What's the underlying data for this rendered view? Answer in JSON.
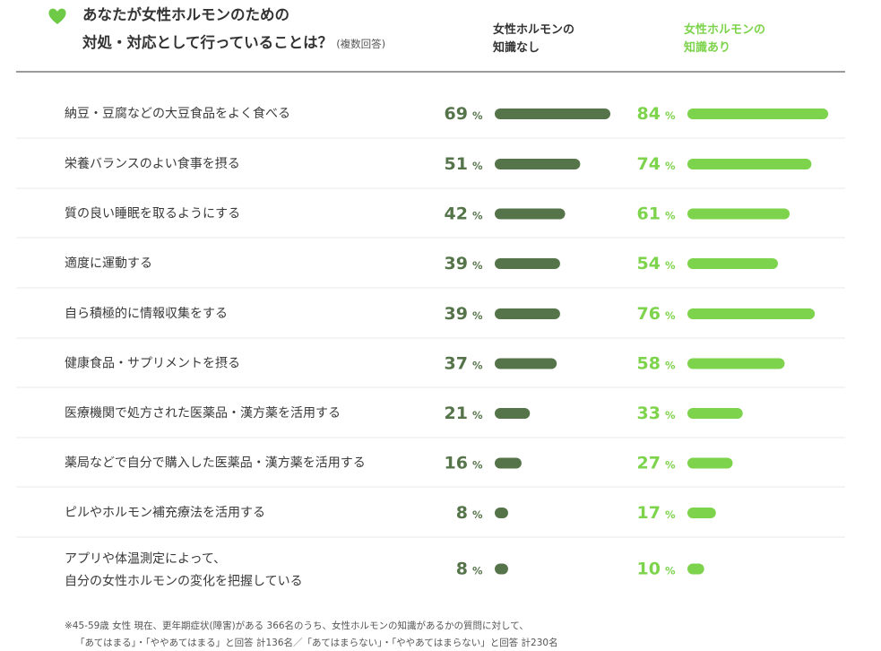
{
  "title": {
    "line1": "あなたが女性ホルモンのための",
    "line2": "対処・対応として行っていることは？",
    "note": "(複数回答)"
  },
  "colors": {
    "heart": "#6dc946",
    "series_no_knowledge": "#56744a",
    "series_knowledge": "#7dd34b",
    "divider": "#e8e8e8",
    "header_rule": "#7a7a7a"
  },
  "icons": {
    "title_icon": "heart-icon"
  },
  "chart_data": {
    "type": "bar",
    "orientation": "horizontal",
    "title": "あなたが女性ホルモンのための対処・対応として行っていることは？(複数回答)",
    "unit": "%",
    "xlim": [
      0,
      100
    ],
    "categories": [
      [
        "納豆・豆腐などの大豆食品をよく食べる"
      ],
      [
        "栄養バランスのよい食事を摂る"
      ],
      [
        "質の良い睡眠を取るようにする"
      ],
      [
        "適度に運動する"
      ],
      [
        "自ら積極的に情報収集をする"
      ],
      [
        "健康食品・サプリメントを摂る"
      ],
      [
        "医療機関で処方された医薬品・漢方薬を活用する"
      ],
      [
        "薬局などで自分で購入した医薬品・漢方薬を活用する"
      ],
      [
        "ピルやホルモン補充療法を活用する"
      ],
      [
        "アプリや体温測定によって、",
        "自分の女性ホルモンの変化を把握している"
      ]
    ],
    "series": [
      {
        "name_lines": [
          "女性ホルモンの",
          "知識なし"
        ],
        "values": [
          69,
          51,
          42,
          39,
          39,
          37,
          21,
          16,
          8,
          8
        ]
      },
      {
        "name_lines": [
          "女性ホルモンの",
          "知識あり"
        ],
        "values": [
          84,
          74,
          61,
          54,
          76,
          58,
          33,
          27,
          17,
          10
        ]
      }
    ]
  },
  "footnote": {
    "line1": "※45-59歳 女性 現在、更年期症状(障害)がある 366名のうち、女性ホルモンの知識があるかの質問に対して、",
    "line2": "「あてはまる」・「ややあてはまる」と回答 計136名／「あてはまらない」・「ややあてはまらない」と回答 計230名"
  }
}
